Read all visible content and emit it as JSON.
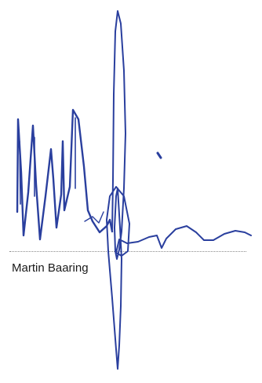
{
  "signature": {
    "signer_name": "Martin Baaring",
    "ink_color": "#2a3f9e"
  }
}
